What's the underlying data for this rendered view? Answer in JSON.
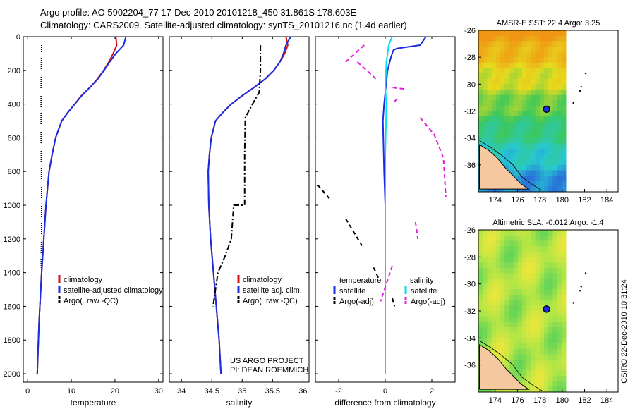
{
  "header": {
    "title_line1": "Argo profile: AO 5902204_77 17-Dec-2010 20101218_450 31.861S 178.603E",
    "title_line2": "Climatology: CARS2009. Satellite-adjusted climatology: synTS_20101216.nc (1.4d earlier)"
  },
  "footer": {
    "project_line1": "US ARGO PROJECT",
    "project_line2": "PI: DEAN ROEMMICH",
    "timestamp": "CSIRO 22-Dec-2010 10:31:24"
  },
  "colors": {
    "climatology": "#d01010",
    "satellite": "#1a2de0",
    "argo": "#000000",
    "salinity_satellite": "#00e0f0",
    "salinity_argo": "#e020e0"
  },
  "chart_data": [
    {
      "type": "line",
      "name": "temperature-panel",
      "xlabel": "temperature",
      "ylabel": "",
      "xlim": [
        -1,
        31
      ],
      "ylim": [
        2050,
        0
      ],
      "xticks": [
        0,
        10,
        20,
        30
      ],
      "yticks": [
        0,
        200,
        400,
        600,
        800,
        1000,
        1200,
        1400,
        1600,
        1800,
        2000
      ],
      "legend": [
        "climatology",
        "satellite-adjusted climatology",
        "Argo(..raw -QC)"
      ],
      "legend_position": "bottom-left",
      "series": [
        {
          "name": "climatology",
          "style": "solid",
          "x": [
            20.2,
            20.4,
            19.6,
            18.6,
            17.4,
            16.0,
            14.3,
            12.3,
            10.8,
            9.2,
            7.8,
            6.4,
            5.6,
            4.9,
            4.2,
            3.7,
            3.2,
            2.6,
            2.2
          ],
          "y": [
            0,
            50,
            100,
            150,
            200,
            250,
            300,
            350,
            400,
            450,
            500,
            600,
            700,
            800,
            1000,
            1200,
            1400,
            1700,
            2000
          ]
        },
        {
          "name": "satellite-adjusted climatology",
          "style": "solid",
          "x": [
            22.5,
            22.0,
            20.2,
            18.8,
            17.5,
            16.1,
            14.3,
            12.4,
            10.8,
            9.2,
            7.8,
            6.4,
            5.6,
            4.9,
            4.2,
            3.7,
            3.2,
            2.6,
            2.2
          ],
          "y": [
            0,
            50,
            100,
            150,
            200,
            250,
            300,
            350,
            400,
            450,
            500,
            600,
            700,
            800,
            1000,
            1200,
            1400,
            1700,
            2000
          ]
        },
        {
          "name": "Argo(..raw -QC)",
          "style": "dotted",
          "x": [
            3.2,
            3.1,
            3.1,
            3.2,
            3.2,
            3.1,
            3.1,
            3.2
          ],
          "y": [
            50,
            300,
            600,
            900,
            1200,
            1300,
            1350,
            1380
          ]
        }
      ]
    },
    {
      "type": "line",
      "name": "salinity-panel",
      "xlabel": "salinity",
      "ylabel": "",
      "xlim": [
        33.8,
        36.1
      ],
      "ylim": [
        2050,
        0
      ],
      "xticks": [
        34,
        34.5,
        35,
        35.5,
        36
      ],
      "yticks": [
        0,
        200,
        400,
        600,
        800,
        1000,
        1200,
        1400,
        1600,
        1800,
        2000
      ],
      "legend": [
        "climatology",
        "satellite adj. clim.",
        "Argo(..raw -QC)"
      ],
      "legend_position": "bottom-right",
      "series": [
        {
          "name": "climatology",
          "style": "solid",
          "x": [
            35.72,
            35.75,
            35.7,
            35.62,
            35.52,
            35.38,
            35.2,
            35.0,
            34.82,
            34.68,
            34.56,
            34.49,
            34.46,
            34.44,
            34.45,
            34.48,
            34.55,
            34.62,
            34.65
          ],
          "y": [
            0,
            50,
            100,
            150,
            200,
            250,
            300,
            350,
            400,
            450,
            500,
            600,
            700,
            800,
            1000,
            1200,
            1500,
            1800,
            2000
          ]
        },
        {
          "name": "satellite adj. clim.",
          "style": "solid",
          "x": [
            35.8,
            35.72,
            35.68,
            35.62,
            35.52,
            35.38,
            35.2,
            35.0,
            34.82,
            34.68,
            34.56,
            34.49,
            34.46,
            34.44,
            34.45,
            34.48,
            34.55,
            34.62,
            34.65
          ],
          "y": [
            0,
            50,
            100,
            150,
            200,
            250,
            300,
            350,
            400,
            450,
            500,
            600,
            700,
            800,
            1000,
            1200,
            1500,
            1800,
            2000
          ]
        },
        {
          "name": "Argo(..raw -QC)",
          "style": "dashdot",
          "x": [
            35.3,
            35.3,
            35.28,
            35.2,
            35.05,
            35.04,
            35.04,
            34.86,
            34.84,
            34.82,
            34.72,
            34.66,
            34.6,
            34.58,
            34.56,
            34.52
          ],
          "y": [
            50,
            200,
            330,
            380,
            480,
            700,
            1000,
            1000,
            1100,
            1200,
            1300,
            1350,
            1400,
            1450,
            1500,
            1600
          ]
        }
      ]
    },
    {
      "type": "line",
      "name": "difference-panel",
      "xlabel": "difference from climatology",
      "ylabel": "",
      "xlim": [
        -3,
        3
      ],
      "ylim": [
        2050,
        0
      ],
      "xticks": [
        -2,
        0,
        2
      ],
      "yticks": [
        0,
        200,
        400,
        600,
        800,
        1000,
        1200,
        1400,
        1600,
        1800,
        2000
      ],
      "legend": [
        "temperature",
        "satellite",
        "Argo(-adj)",
        "salinity",
        "satellite",
        "Argo(-adj)"
      ],
      "legend_position": "bottom",
      "series": [
        {
          "name": "temperature satellite",
          "style": "solid",
          "x": [
            1.75,
            1.5,
            1.0,
            0.5,
            0.35,
            0.25,
            0.1,
            -0.05,
            -0.1,
            -0.05,
            0.0,
            0.0,
            0.0,
            0.0
          ],
          "y": [
            0,
            50,
            60,
            70,
            80,
            120,
            200,
            400,
            500,
            800,
            1000,
            1300,
            1600,
            2000
          ]
        },
        {
          "name": "temperature Argo(-adj)",
          "style": "dashed",
          "segments": [
            {
              "x": [
                -2.9,
                -2.4
              ],
              "y": [
                880,
                960
              ]
            },
            {
              "x": [
                -1.7,
                -1.0
              ],
              "y": [
                1080,
                1240
              ]
            },
            {
              "x": [
                -0.5,
                -0.3
              ],
              "y": [
                1370,
                1430
              ]
            },
            {
              "x": [
                0.3,
                0.4
              ],
              "y": [
                1550,
                1600
              ]
            }
          ]
        },
        {
          "name": "salinity satellite",
          "style": "solid",
          "x": [
            0.3,
            0.15,
            0.05,
            0.0,
            0.05,
            0.0,
            0.0,
            0.0,
            0.0
          ],
          "y": [
            0,
            50,
            150,
            300,
            400,
            700,
            1000,
            1500,
            2000
          ]
        },
        {
          "name": "salinity Argo(-adj)",
          "style": "dashed",
          "segments": [
            {
              "x": [
                -0.9,
                -1.7
              ],
              "y": [
                50,
                150
              ]
            },
            {
              "x": [
                -1.2,
                -0.4
              ],
              "y": [
                150,
                250
              ]
            },
            {
              "x": [
                0.8,
                0.2
              ],
              "y": [
                310,
                300
              ]
            },
            {
              "x": [
                0.5,
                0.3
              ],
              "y": [
                370,
                400
              ]
            },
            {
              "x": [
                1.5,
                2.1,
                2.5,
                2.6
              ],
              "y": [
                480,
                580,
                720,
                950
              ]
            },
            {
              "x": [
                1.3,
                1.4
              ],
              "y": [
                1100,
                1200
              ]
            },
            {
              "x": [
                0.3,
                -0.2
              ],
              "y": [
                1360,
                1570
              ]
            }
          ]
        }
      ]
    }
  ],
  "maps": [
    {
      "title": "AMSR-E SST: 22.4 Argo: 3.25",
      "xticks": [
        "174",
        "176",
        "178",
        "180",
        "182",
        "184"
      ],
      "yticks": [
        "-26",
        "-28",
        "-30",
        "-32",
        "-34",
        "-36"
      ],
      "xlim": [
        172.5,
        185
      ],
      "ylim": [
        -38,
        -26
      ],
      "float_position": {
        "lon": 178.6,
        "lat": -31.86
      }
    },
    {
      "title": "Altimetric SLA: -0.012 Argo: -1.4",
      "xticks": [
        "174",
        "176",
        "178",
        "180",
        "182",
        "184"
      ],
      "yticks": [
        "-26",
        "-28",
        "-30",
        "-32",
        "-34",
        "-36"
      ],
      "xlim": [
        172.5,
        185
      ],
      "ylim": [
        -38,
        -26
      ],
      "float_position": {
        "lon": 178.6,
        "lat": -31.86
      }
    }
  ]
}
